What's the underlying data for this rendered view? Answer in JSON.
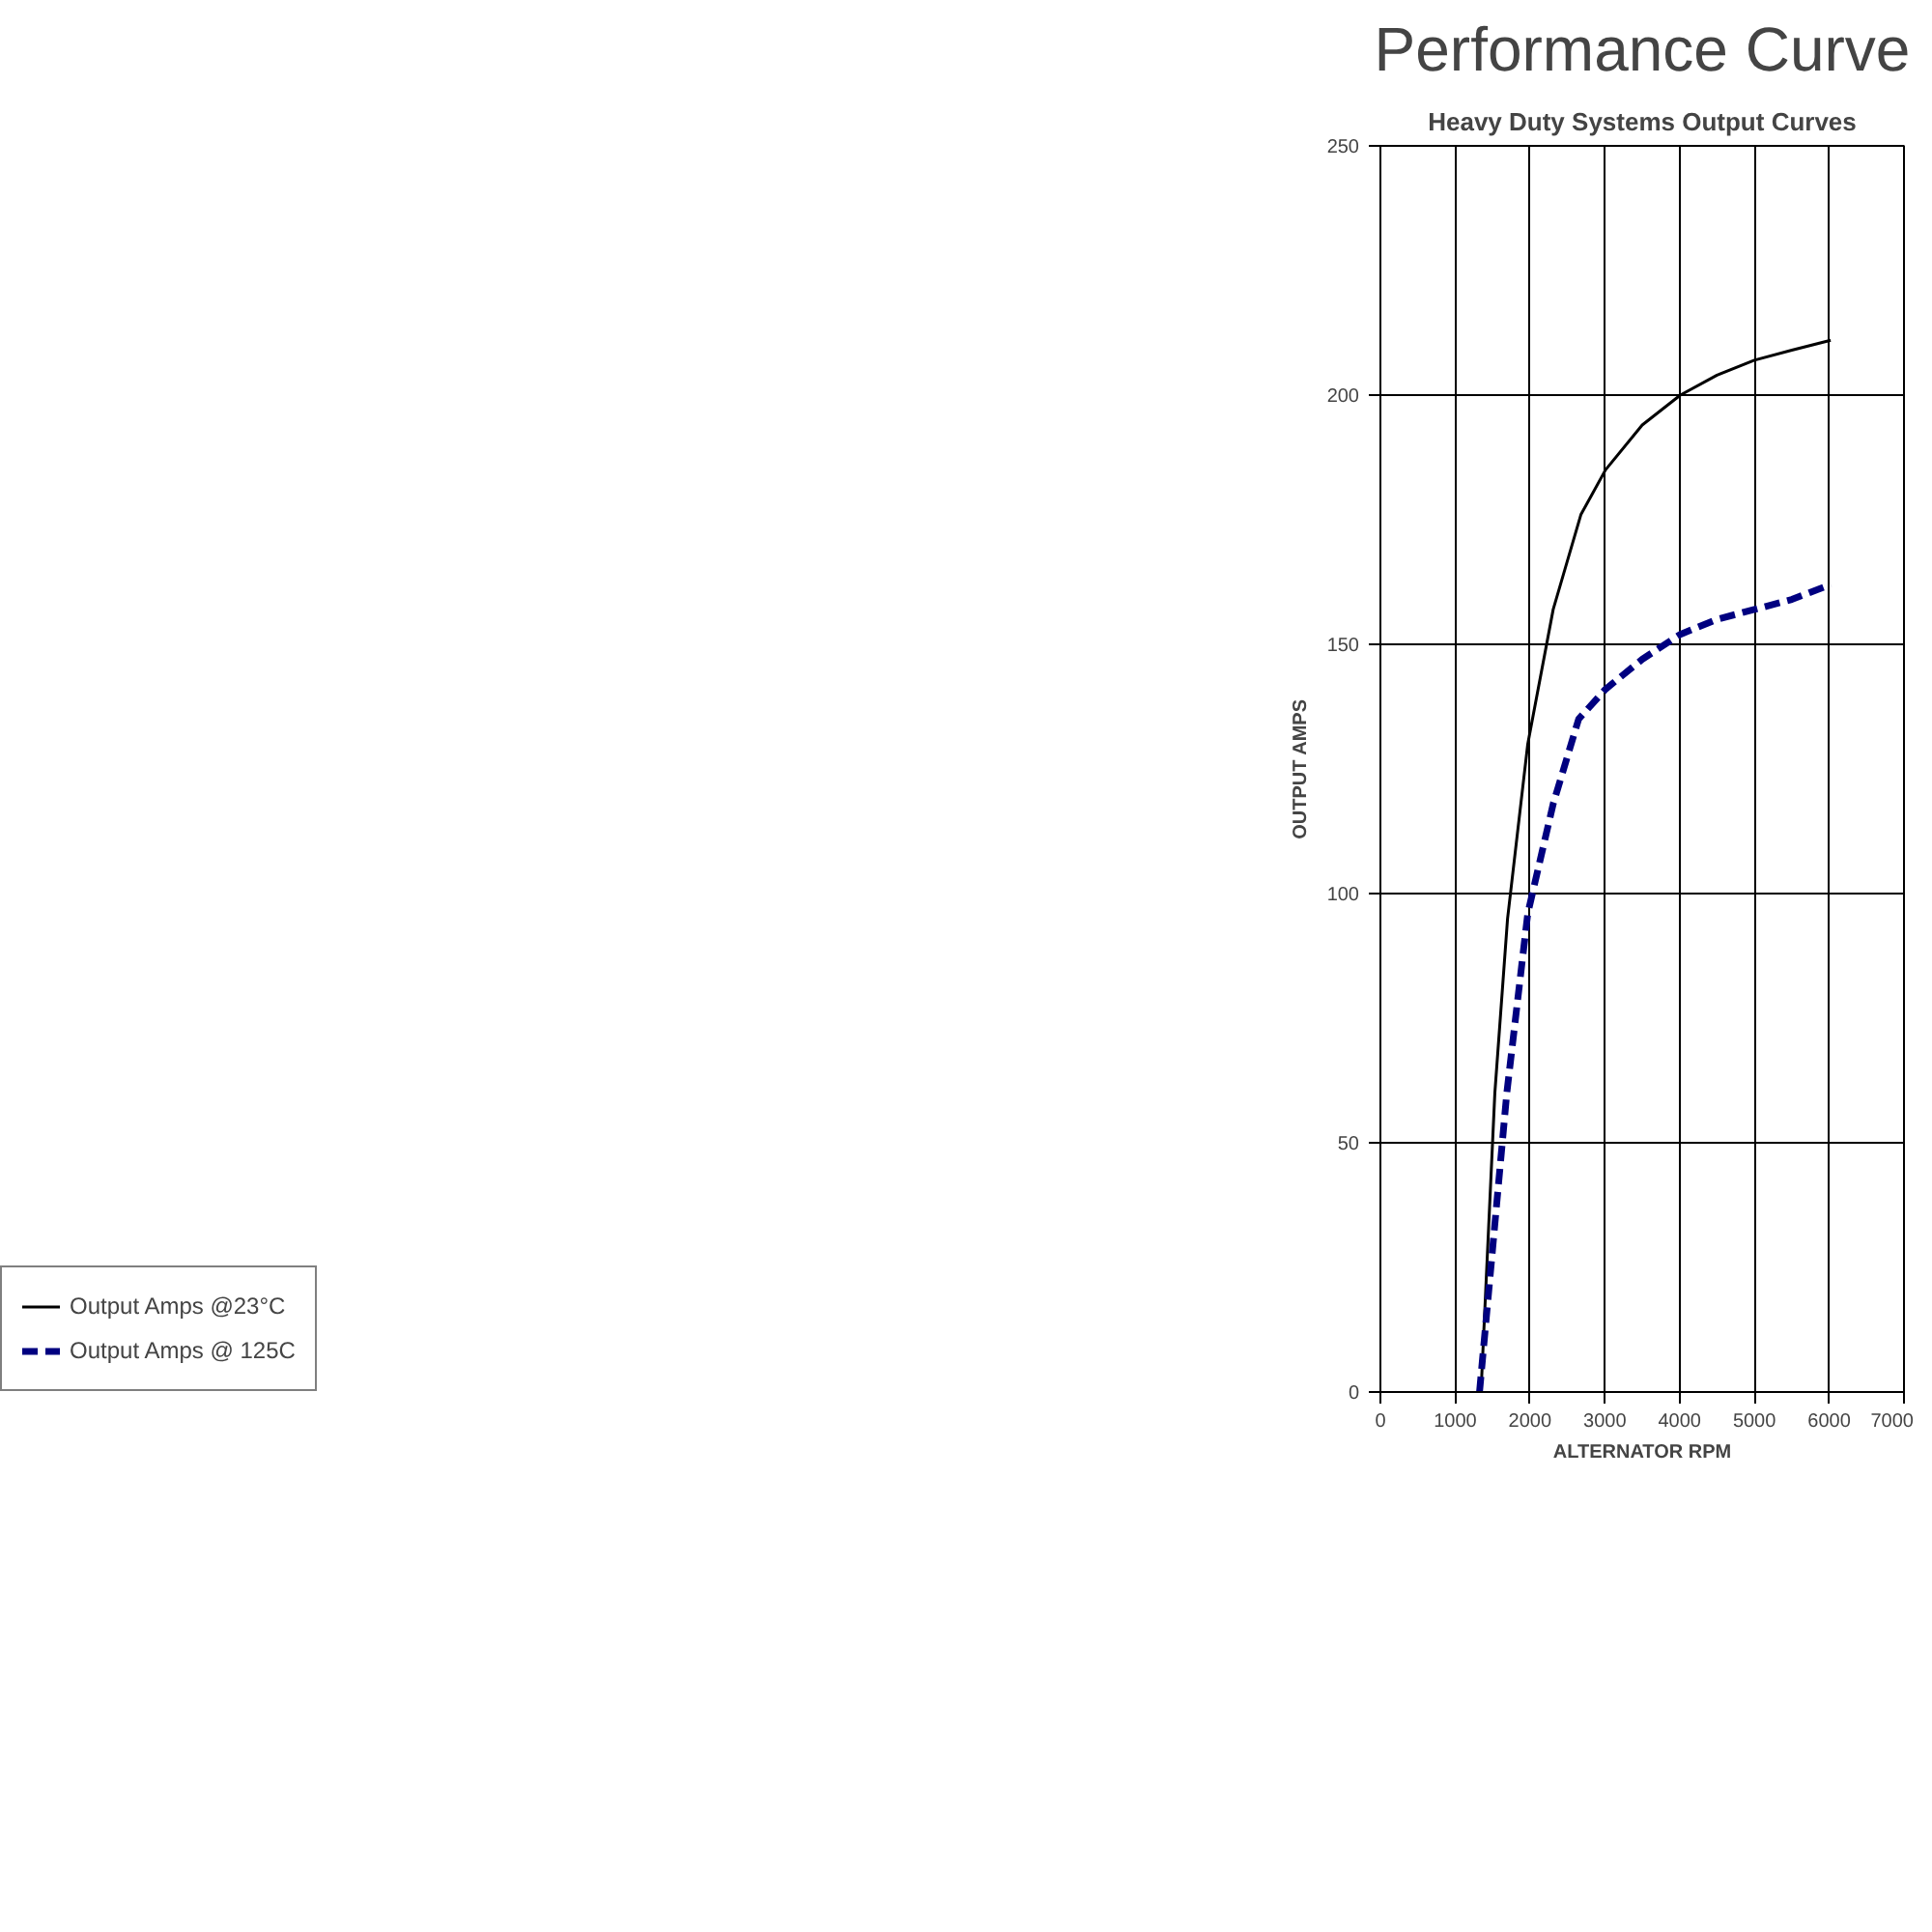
{
  "chart_data": {
    "type": "line",
    "title": "Performance Curve",
    "subtitle": "Heavy Duty Systems Output Curves",
    "xlabel": "ALTERNATOR RPM",
    "ylabel": "OUTPUT AMPS",
    "xlim": [
      0,
      7000
    ],
    "xticks": [
      0,
      1000,
      2000,
      3000,
      4000,
      5000,
      6000,
      7000
    ],
    "ylim": [
      0,
      250
    ],
    "yticks": [
      0,
      50,
      100,
      150,
      200,
      250
    ],
    "grid": true,
    "legend": "left",
    "series": [
      {
        "name": "Output Amps @23°C",
        "color": "#000000",
        "line_style": "solid",
        "x": [
          1345,
          1530,
          1700,
          1970,
          2310,
          2680,
          3010,
          3500,
          4010,
          4500,
          5000,
          5500,
          6020
        ],
        "values": [
          0,
          60,
          95,
          130,
          157,
          176,
          185,
          194,
          200,
          204,
          207,
          209,
          211
        ]
      },
      {
        "name": "Output Amps @ 125C",
        "color": "#000080",
        "line_style": "dashed",
        "x": [
          1325,
          1690,
          1970,
          2310,
          2650,
          3010,
          3500,
          4010,
          4500,
          5000,
          5500,
          6020
        ],
        "values": [
          0,
          60,
          96,
          118,
          135,
          141,
          147,
          152,
          155,
          157,
          159,
          162
        ]
      }
    ]
  }
}
